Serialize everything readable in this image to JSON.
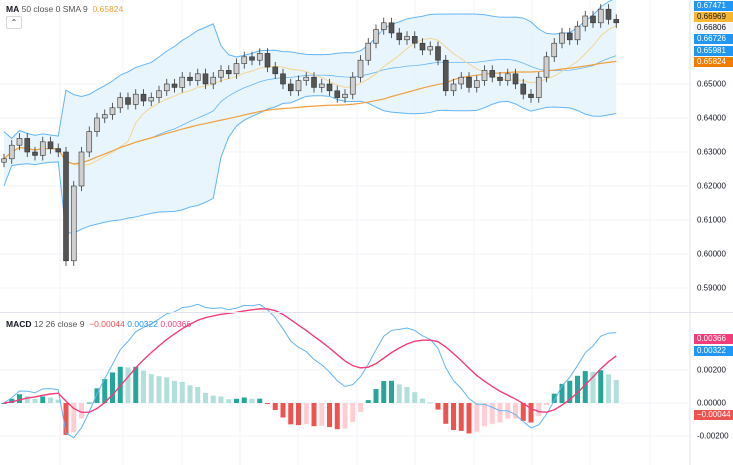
{
  "main_legend": {
    "name": "MA",
    "params": "50 close 0 SMA 9",
    "value": "0.65824",
    "value_color": "#f7a035"
  },
  "collapse_icon": "chevron-up-icon",
  "macd_legend": {
    "name": "MACD",
    "params": "12 26 close 9",
    "hist": "−0.00044",
    "macd": "0.00322",
    "signal": "0.00366"
  },
  "colors": {
    "band": "#64b5f6",
    "band_fill": "#e3f2fd",
    "ma50": "#f0a040",
    "ma9": "#f3d590",
    "macd": "#64b5f6",
    "signal": "#f23d7a",
    "hist_up": "#26a69a",
    "hist_up_light": "#b2dfdb",
    "hist_dn": "#ef5350",
    "hist_dn_light": "#ffcdd2",
    "candle_up": "#cfcfcf",
    "candle_dn": "#555555"
  },
  "price_axis": {
    "ticks": [
      "0.65000",
      "0.64000",
      "0.63000",
      "0.62000",
      "0.61000",
      "0.60000",
      "0.59000"
    ],
    "tags": [
      {
        "text": "0.67471",
        "bg": "#2196f3",
        "fg": "#fff"
      },
      {
        "text": "0.66969",
        "bg": "#f7b731",
        "fg": "#131722"
      },
      {
        "text": "0.66806",
        "bg": "#f5f5f5",
        "fg": "#131722"
      },
      {
        "text": "0.66726",
        "bg": "#2196f3",
        "fg": "#fff"
      },
      {
        "text": "0.65981",
        "bg": "#2196f3",
        "fg": "#fff"
      },
      {
        "text": "0.65824",
        "bg": "#ef7d00",
        "fg": "#fff"
      }
    ]
  },
  "macd_axis": {
    "ticks": [
      "0.00200",
      "0.00000",
      "-0.00200"
    ],
    "tags": [
      {
        "text": "0.00366",
        "bg": "#f23d7a",
        "fg": "#fff"
      },
      {
        "text": "0.00322",
        "bg": "#2196f3",
        "fg": "#fff"
      },
      {
        "text": "−0.00044",
        "bg": "#ef5350",
        "fg": "#fff"
      }
    ]
  },
  "chart_data": {
    "type": "candlestick",
    "ylim": [
      0.585,
      0.675
    ],
    "yticks": [
      0.59,
      0.6,
      0.61,
      0.62,
      0.63,
      0.64,
      0.65
    ],
    "grid": true,
    "indicators": [
      "Bollinger Bands",
      "MA 50",
      "SMA 9",
      "MACD 12 26 9"
    ],
    "close": [
      0.628,
      0.632,
      0.634,
      0.63,
      0.629,
      0.633,
      0.631,
      0.63,
      0.598,
      0.62,
      0.63,
      0.636,
      0.64,
      0.641,
      0.643,
      0.646,
      0.644,
      0.647,
      0.645,
      0.646,
      0.648,
      0.65,
      0.649,
      0.652,
      0.651,
      0.653,
      0.65,
      0.652,
      0.654,
      0.653,
      0.656,
      0.658,
      0.657,
      0.659,
      0.655,
      0.653,
      0.65,
      0.648,
      0.651,
      0.652,
      0.649,
      0.65,
      0.648,
      0.646,
      0.647,
      0.652,
      0.657,
      0.662,
      0.666,
      0.668,
      0.665,
      0.663,
      0.664,
      0.662,
      0.66,
      0.661,
      0.657,
      0.648,
      0.65,
      0.652,
      0.649,
      0.651,
      0.654,
      0.652,
      0.651,
      0.653,
      0.65,
      0.647,
      0.646,
      0.652,
      0.658,
      0.662,
      0.665,
      0.663,
      0.667,
      0.67,
      0.668,
      0.672,
      0.669,
      0.668
    ],
    "macd_ylim": [
      -0.0038,
      0.004
    ],
    "macd_yticks": [
      0.002,
      0,
      -0.002
    ]
  }
}
